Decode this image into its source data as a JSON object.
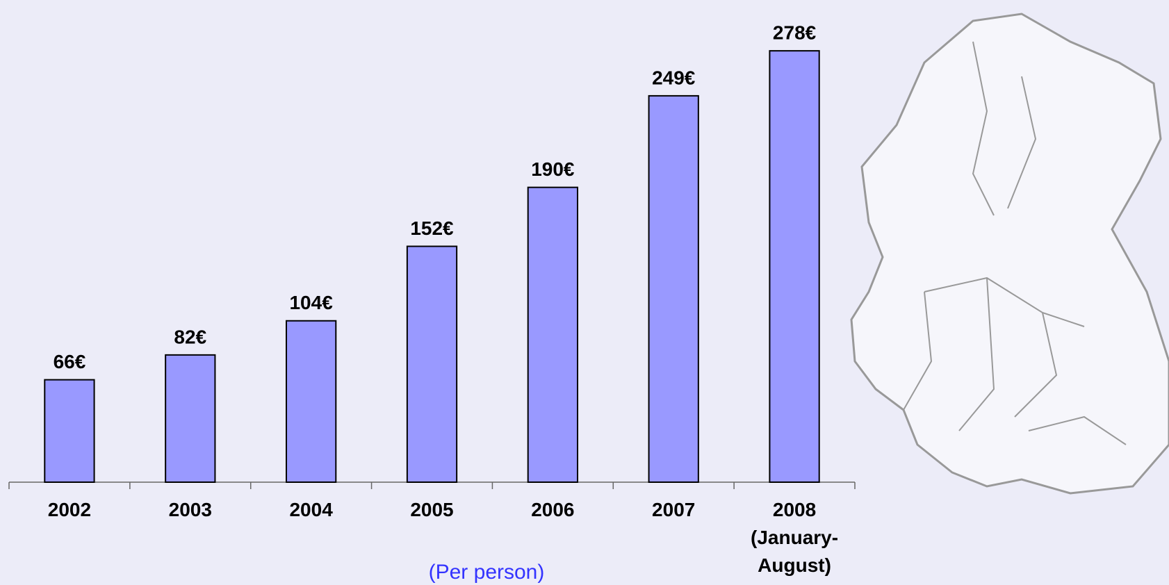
{
  "chart_data": {
    "type": "bar",
    "subtitle": "(Per person)",
    "categories": [
      "2002",
      "2003",
      "2004",
      "2005",
      "2006",
      "2007",
      "2008 (January-August)"
    ],
    "values": [
      66,
      82,
      104,
      152,
      190,
      249,
      278
    ],
    "value_labels": [
      "66€",
      "82€",
      "104€",
      "152€",
      "190€",
      "249€",
      "278€"
    ],
    "color": "#9999ff",
    "ylim": [
      0,
      300
    ]
  }
}
